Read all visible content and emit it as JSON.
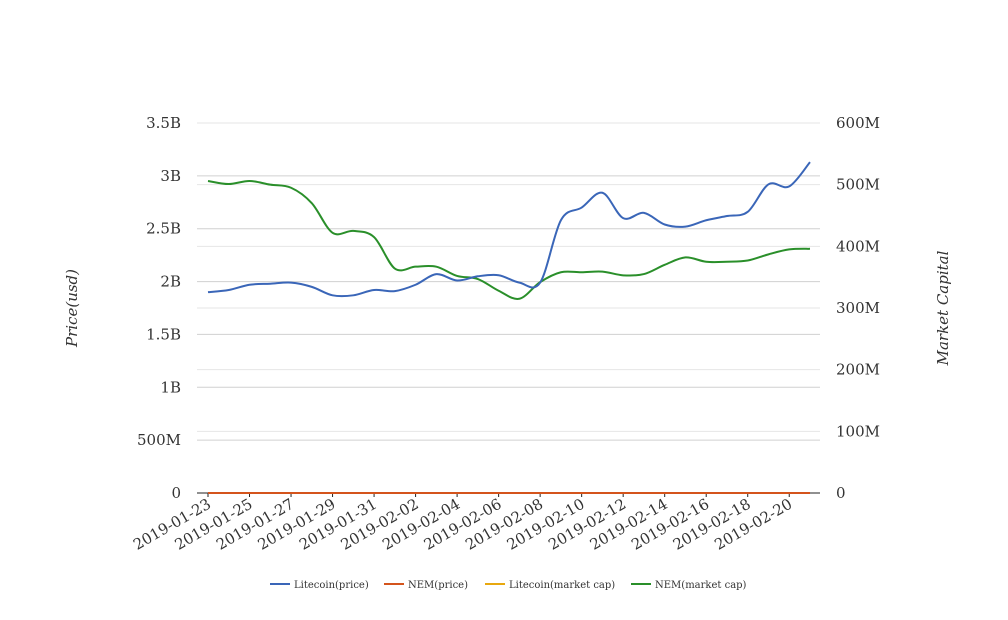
{
  "chart_data": {
    "type": "line",
    "title": "",
    "ylabel_left": "Price(usd)",
    "ylabel_right": "Market Capital",
    "grid": true,
    "legend_position": "bottom",
    "ylim_left": [
      0,
      3500000000
    ],
    "ylim_right": [
      0,
      600000000
    ],
    "yticks_left": [
      {
        "value": 0,
        "label": "0"
      },
      {
        "value": 500000000,
        "label": "500M"
      },
      {
        "value": 1000000000,
        "label": "1B"
      },
      {
        "value": 1500000000,
        "label": "1.5B"
      },
      {
        "value": 2000000000,
        "label": "2B"
      },
      {
        "value": 2500000000,
        "label": "2.5B"
      },
      {
        "value": 3000000000,
        "label": "3B"
      },
      {
        "value": 3500000000,
        "label": "3.5B"
      }
    ],
    "yticks_right": [
      {
        "value": 0,
        "label": "0"
      },
      {
        "value": 100000000,
        "label": "100M"
      },
      {
        "value": 200000000,
        "label": "200M"
      },
      {
        "value": 300000000,
        "label": "300M"
      },
      {
        "value": 400000000,
        "label": "400M"
      },
      {
        "value": 500000000,
        "label": "500M"
      },
      {
        "value": 600000000,
        "label": "600M"
      }
    ],
    "x": [
      "2019-01-23",
      "2019-01-24",
      "2019-01-25",
      "2019-01-26",
      "2019-01-27",
      "2019-01-28",
      "2019-01-29",
      "2019-01-30",
      "2019-01-31",
      "2019-02-01",
      "2019-02-02",
      "2019-02-03",
      "2019-02-04",
      "2019-02-05",
      "2019-02-06",
      "2019-02-07",
      "2019-02-08",
      "2019-02-09",
      "2019-02-10",
      "2019-02-11",
      "2019-02-12",
      "2019-02-13",
      "2019-02-14",
      "2019-02-15",
      "2019-02-16",
      "2019-02-17",
      "2019-02-18",
      "2019-02-19",
      "2019-02-20",
      "2019-02-21"
    ],
    "x_tick_labels": [
      "2019-01-23",
      "2019-01-25",
      "2019-01-27",
      "2019-01-29",
      "2019-01-31",
      "2019-02-02",
      "2019-02-04",
      "2019-02-06",
      "2019-02-08",
      "2019-02-10",
      "2019-02-12",
      "2019-02-14",
      "2019-02-16",
      "2019-02-18",
      "2019-02-20"
    ],
    "series": [
      {
        "name": "Litecoin(price)",
        "axis": "left",
        "color": "#3a66b8",
        "values": [
          1900000000,
          1920000000,
          1970000000,
          1980000000,
          1990000000,
          1950000000,
          1870000000,
          1870000000,
          1920000000,
          1910000000,
          1970000000,
          2070000000,
          2010000000,
          2050000000,
          2060000000,
          1990000000,
          1990000000,
          2580000000,
          2700000000,
          2840000000,
          2600000000,
          2650000000,
          2540000000,
          2520000000,
          2580000000,
          2620000000,
          2660000000,
          2920000000,
          2900000000,
          3130000000
        ]
      },
      {
        "name": "NEM(price)",
        "axis": "left",
        "color": "#d4541c",
        "values": [
          0.053,
          0.052,
          0.052,
          0.051,
          0.05,
          0.049,
          0.046,
          0.046,
          0.045,
          0.041,
          0.042,
          0.042,
          0.041,
          0.04,
          0.038,
          0.036,
          0.039,
          0.041,
          0.041,
          0.041,
          0.04,
          0.04,
          0.041,
          0.043,
          0.042,
          0.042,
          0.042,
          0.044,
          0.045,
          0.045
        ]
      },
      {
        "name": "Litecoin(market cap)",
        "axis": "right",
        "color": "#e8a80f",
        "values": [
          0,
          0,
          0,
          0,
          0,
          0,
          0,
          0,
          0,
          0,
          0,
          0,
          0,
          0,
          0,
          0,
          0,
          0,
          0,
          0,
          0,
          0,
          0,
          0,
          0,
          0,
          0,
          0,
          0,
          0
        ]
      },
      {
        "name": "NEM(market cap)",
        "axis": "right",
        "color": "#2a8f2a",
        "values": [
          506000000,
          501000000,
          506000000,
          500000000,
          495000000,
          470000000,
          422000000,
          425000000,
          415000000,
          364000000,
          367000000,
          367000000,
          352000000,
          347000000,
          328000000,
          315000000,
          342000000,
          358000000,
          358000000,
          359000000,
          353000000,
          355000000,
          370000000,
          382000000,
          375000000,
          375000000,
          377000000,
          387000000,
          395000000,
          396000000
        ]
      }
    ]
  }
}
